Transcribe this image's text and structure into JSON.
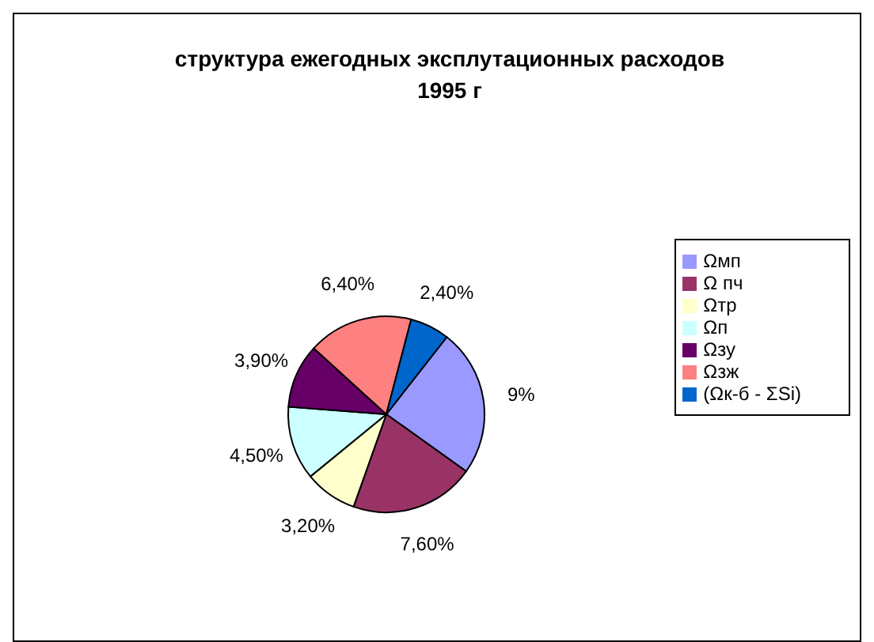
{
  "chart_data": {
    "type": "pie",
    "title": "структура ежегодных  эксплутационных расходов 1995 г",
    "categories": [
      "Ωмп",
      "Ω пч",
      "Ωтр",
      "Ωп",
      "Ωзу",
      "Ωзж",
      "(Ωк-б - ΣSi)"
    ],
    "values": [
      9,
      7.6,
      3.2,
      4.5,
      3.9,
      6.4,
      2.4
    ],
    "value_labels": [
      "9%",
      "7,60%",
      "3,20%",
      "4,50%",
      "3,90%",
      "6,40%",
      "2,40%"
    ],
    "colors": [
      "#9999ff",
      "#993366",
      "#ffffcc",
      "#ccffff",
      "#660066",
      "#ff8080",
      "#0066cc"
    ],
    "legend": "right"
  }
}
